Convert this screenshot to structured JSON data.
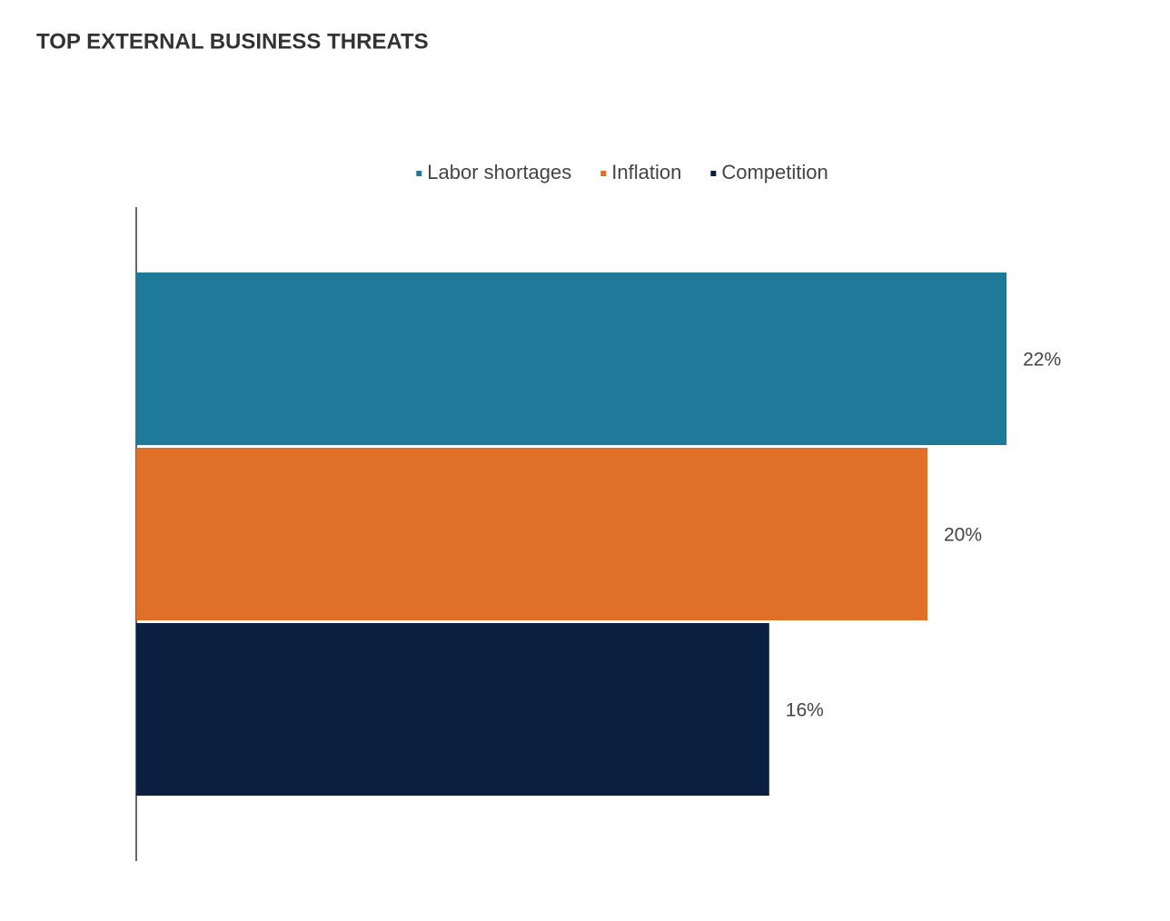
{
  "chart_data": {
    "type": "bar",
    "orientation": "horizontal",
    "title": "TOP EXTERNAL BUSINESS THREATS",
    "categories": [
      null
    ],
    "series": [
      {
        "name": "Labor shortages",
        "color": "#1f7a99",
        "values": [
          22
        ],
        "value_labels": [
          "22%"
        ]
      },
      {
        "name": "Inflation",
        "color": "#e07028",
        "values": [
          20
        ],
        "value_labels": [
          "20%"
        ]
      },
      {
        "name": "Competition",
        "color": "#0b1f40",
        "values": [
          16
        ],
        "value_labels": [
          "16%"
        ]
      }
    ],
    "legend": "top"
  }
}
